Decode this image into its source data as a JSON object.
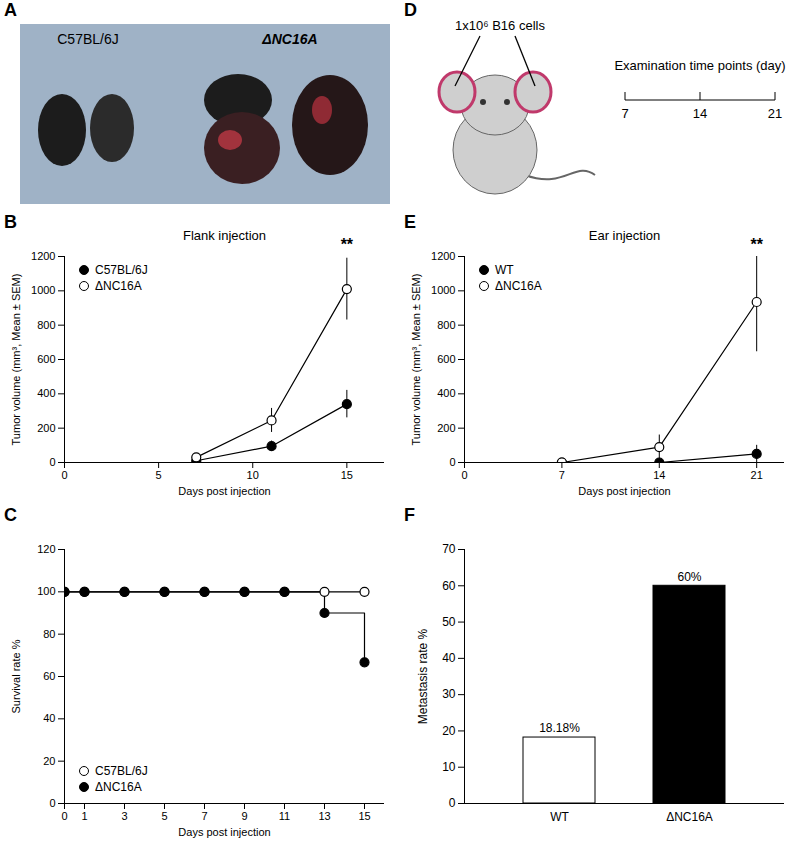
{
  "photo": {
    "panel_label": "A",
    "labels": [
      "C57BL/6J",
      "ΔNC16A"
    ]
  },
  "diagram": {
    "panel_label": "D",
    "injection_label": "1x10⁶ B16 cells",
    "timeline_label": "Examination time points (day)",
    "time_points": [
      7,
      14,
      21
    ]
  },
  "chart_data": [
    {
      "panel_label": "B",
      "type": "line",
      "title": "Flank injection",
      "xlabel": "Days post injection",
      "ylabel": "Tumor volume (mm³, Mean ± SEM)",
      "x": [
        7,
        11,
        15
      ],
      "xlim": [
        0,
        17
      ],
      "xticks": [
        0,
        5,
        10,
        15
      ],
      "ylim": [
        0,
        1200
      ],
      "yticks": [
        0,
        200,
        400,
        600,
        800,
        1000,
        1200
      ],
      "legend": "upper left",
      "series": [
        {
          "name": "C57BL/6J",
          "color": "#000000",
          "marker": "circle",
          "values": [
            10,
            95,
            340
          ],
          "errors": [
            5,
            30,
            80
          ]
        },
        {
          "name": "ΔNC16A",
          "color": "#000000",
          "marker": "open circle",
          "values": [
            30,
            245,
            1010
          ],
          "errors": [
            10,
            70,
            180
          ]
        }
      ],
      "annotations": [
        {
          "text": "**",
          "x": 15,
          "y": 1270
        }
      ]
    },
    {
      "panel_label": "C",
      "type": "step",
      "xlabel": "Days post injection",
      "ylabel": "Survival rate %",
      "x": [
        0,
        1,
        3,
        5,
        7,
        9,
        11,
        13,
        15
      ],
      "xlim": [
        0,
        16
      ],
      "xticks": [
        0,
        1,
        3,
        5,
        7,
        9,
        11,
        13,
        15
      ],
      "ylim": [
        0,
        120
      ],
      "yticks": [
        0,
        20,
        40,
        60,
        80,
        100,
        120
      ],
      "legend": "lower left",
      "series": [
        {
          "name": "C57BL/6J",
          "color": "#000000",
          "marker": "open circle",
          "values": [
            100,
            100,
            100,
            100,
            100,
            100,
            100,
            100,
            100
          ]
        },
        {
          "name": "ΔNC16A",
          "color": "#000000",
          "marker": "circle",
          "values": [
            100,
            100,
            100,
            100,
            100,
            100,
            100,
            90,
            66.7
          ]
        }
      ]
    },
    {
      "panel_label": "E",
      "type": "line",
      "title": "Ear injection",
      "xlabel": "Days post injection",
      "ylabel": "Tumor volume (mm³, Mean ± SEM)",
      "x": [
        7,
        14,
        21
      ],
      "xlim": [
        0,
        23
      ],
      "xticks": [
        0,
        7,
        14,
        21
      ],
      "ylim": [
        0,
        1200
      ],
      "yticks": [
        0,
        200,
        400,
        600,
        800,
        1000,
        1200
      ],
      "legend": "upper left",
      "series": [
        {
          "name": "WT",
          "color": "#000000",
          "marker": "circle",
          "values": [
            0,
            0,
            50
          ],
          "errors": [
            0,
            0,
            50
          ]
        },
        {
          "name": "ΔNC16A",
          "color": "#000000",
          "marker": "open circle",
          "values": [
            0,
            90,
            935
          ],
          "errors": [
            0,
            70,
            290
          ]
        }
      ],
      "annotations": [
        {
          "text": "**",
          "x": 21,
          "y": 1270
        }
      ]
    },
    {
      "panel_label": "F",
      "type": "bar",
      "ylabel": "Metastasis rate %",
      "categories": [
        "WT",
        "ΔNC16A"
      ],
      "values": [
        18.18,
        60
      ],
      "value_labels": [
        "18.18%",
        "60%"
      ],
      "colors": [
        "#ffffff",
        "#000000"
      ],
      "data_labels": true,
      "ylim": [
        0,
        70
      ],
      "yticks": [
        0,
        10,
        20,
        30,
        40,
        50,
        60,
        70
      ]
    }
  ]
}
